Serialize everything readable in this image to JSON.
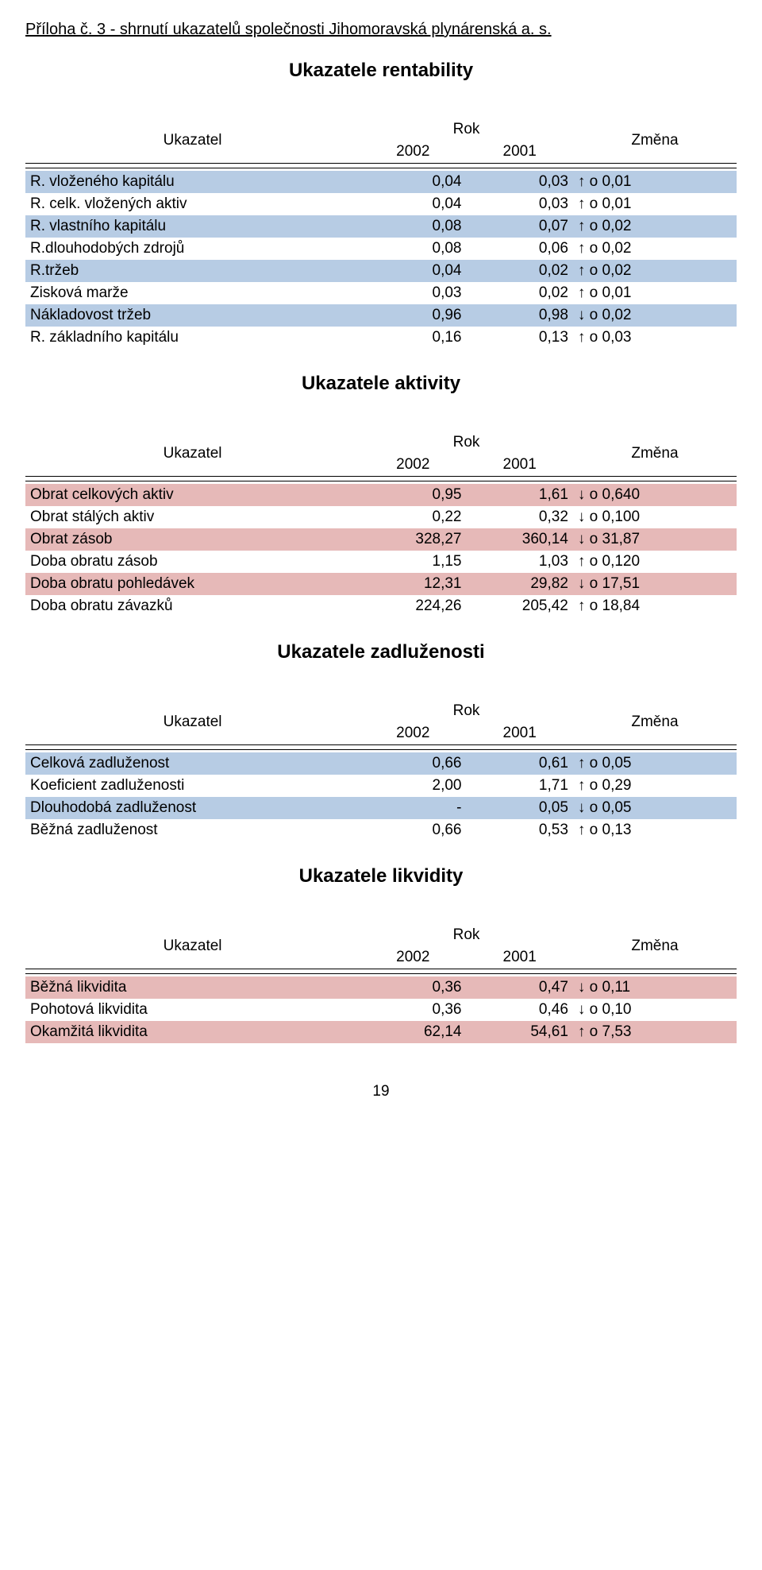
{
  "doc_title": "Příloha č. 3 - shrnutí ukazatelů společnosti Jihomoravská plynárenská a. s.",
  "page_number": "19",
  "header": {
    "ukazatel": "Ukazatel",
    "rok": "Rok",
    "y2002": "2002",
    "y2001": "2001",
    "zmena": "Změna"
  },
  "colors": {
    "blue": "#b7cce4",
    "pink": "#e6b9b8"
  },
  "sections": [
    {
      "title": "Ukazatele rentability",
      "rows": [
        {
          "fill": "blue",
          "ind": "R. vloženého kapitálu",
          "v02": "0,04",
          "v01": "0,03",
          "chg": "↑ o 0,01"
        },
        {
          "fill": "",
          "ind": "R. celk. vložených aktiv",
          "v02": "0,04",
          "v01": "0,03",
          "chg": "↑ o 0,01"
        },
        {
          "fill": "blue",
          "ind": "R. vlastního kapitálu",
          "v02": "0,08",
          "v01": "0,07",
          "chg": "↑ o 0,02"
        },
        {
          "fill": "",
          "ind": "R.dlouhodobých zdrojů",
          "v02": "0,08",
          "v01": "0,06",
          "chg": "↑ o 0,02"
        },
        {
          "fill": "blue",
          "ind": "R.tržeb",
          "v02": "0,04",
          "v01": "0,02",
          "chg": "↑ o 0,02"
        },
        {
          "fill": "",
          "ind": "Zisková marže",
          "v02": "0,03",
          "v01": "0,02",
          "chg": "↑ o 0,01"
        },
        {
          "fill": "blue",
          "ind": "Nákladovost tržeb",
          "v02": "0,96",
          "v01": "0,98",
          "chg": "↓ o 0,02"
        },
        {
          "fill": "",
          "ind": "R. základního kapitálu",
          "v02": "0,16",
          "v01": "0,13",
          "chg": "↑ o 0,03"
        }
      ]
    },
    {
      "title": "Ukazatele aktivity",
      "rows": [
        {
          "fill": "pink",
          "ind": "Obrat celkových aktiv",
          "v02": "0,95",
          "v01": "1,61",
          "chg": "↓ o 0,640"
        },
        {
          "fill": "",
          "ind": "Obrat stálých aktiv",
          "v02": "0,22",
          "v01": "0,32",
          "chg": "↓ o 0,100"
        },
        {
          "fill": "pink",
          "ind": "Obrat zásob",
          "v02": "328,27",
          "v01": "360,14",
          "chg": "↓ o 31,87"
        },
        {
          "fill": "",
          "ind": "Doba obratu zásob",
          "v02": "1,15",
          "v01": "1,03",
          "chg": "↑ o 0,120"
        },
        {
          "fill": "pink",
          "ind": "Doba obratu pohledávek",
          "v02": "12,31",
          "v01": "29,82",
          "chg": "↓ o 17,51"
        },
        {
          "fill": "",
          "ind": "Doba obratu závazků",
          "v02": "224,26",
          "v01": "205,42",
          "chg": "↑ o 18,84"
        }
      ]
    },
    {
      "title": "Ukazatele zadluženosti",
      "rows": [
        {
          "fill": "blue",
          "ind": "Celková zadluženost",
          "v02": "0,66",
          "v01": "0,61",
          "chg": "↑ o 0,05"
        },
        {
          "fill": "",
          "ind": "Koeficient zadluženosti",
          "v02": "2,00",
          "v01": "1,71",
          "chg": "↑ o 0,29"
        },
        {
          "fill": "blue",
          "ind": "Dlouhodobá zadluženost",
          "v02": "-",
          "v01": "0,05",
          "chg": "↓ o 0,05"
        },
        {
          "fill": "",
          "ind": "Běžná zadluženost",
          "v02": "0,66",
          "v01": "0,53",
          "chg": "↑ o 0,13"
        }
      ]
    },
    {
      "title": "Ukazatele likvidity",
      "rows": [
        {
          "fill": "pink",
          "ind": "Běžná likvidita",
          "v02": "0,36",
          "v01": "0,47",
          "chg": "↓ o 0,11"
        },
        {
          "fill": "",
          "ind": "Pohotová likvidita",
          "v02": "0,36",
          "v01": "0,46",
          "chg": "↓ o 0,10"
        },
        {
          "fill": "pink",
          "ind": "Okamžitá likvidita",
          "v02": "62,14",
          "v01": "54,61",
          "chg": "↑ o 7,53"
        }
      ]
    }
  ]
}
